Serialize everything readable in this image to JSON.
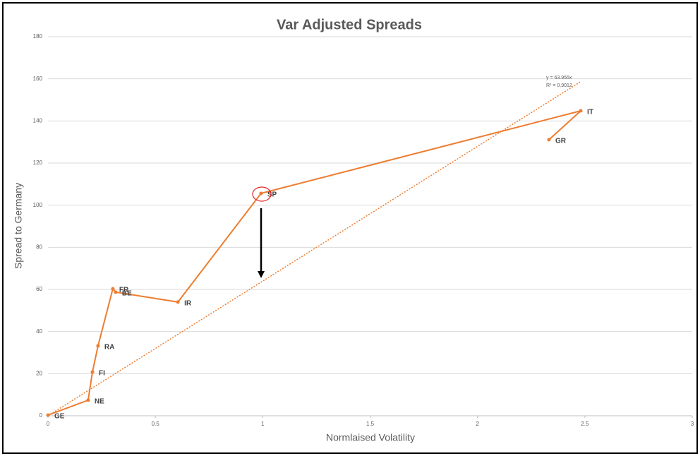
{
  "chart_data": {
    "type": "line",
    "title": "Var Adjusted Spreads",
    "x_label": "Normlaised Volatility",
    "y_label": "Spread to Germany",
    "x": [
      0,
      0.187,
      0.207,
      0.233,
      0.302,
      0.315,
      0.605,
      0.992,
      2.481,
      2.333
    ],
    "values": [
      0.3,
      7.4,
      20.8,
      33.2,
      60.3,
      58.7,
      54.0,
      105.6,
      144.8,
      131.1
    ],
    "point_labels": [
      "GE",
      "NE",
      "FI",
      "RA",
      "FR",
      "BE",
      "IR",
      "SP",
      "IT",
      "GR"
    ],
    "color": "#ED7D31",
    "xlim": [
      0,
      3
    ],
    "xticks": [
      0,
      0.5,
      1,
      1.5,
      2,
      2.5,
      3
    ],
    "ylim": [
      0,
      180
    ],
    "yticks": [
      0,
      20,
      40,
      60,
      80,
      100,
      120,
      140,
      160,
      180
    ],
    "grid": true,
    "trendline": {
      "slope": 63.955,
      "equation": "y = 63.955x",
      "r_squared_label": "R² = 0.9012"
    }
  }
}
